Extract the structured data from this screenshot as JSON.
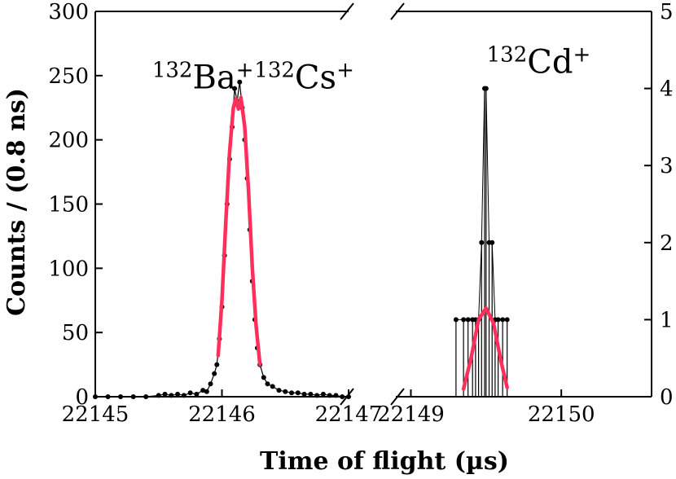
{
  "chart_data": {
    "type": "line",
    "xlabel": "Time of flight (µs)",
    "ylabel": "Counts / (0.8 ns)",
    "colors": {
      "data": "#000000",
      "fit": "#ff2f5b"
    },
    "left_panel": {
      "xlim": [
        22145,
        22147
      ],
      "ylim": [
        0,
        300
      ],
      "x_ticks": [
        22145,
        22146,
        22147
      ],
      "y_ticks": [
        0,
        50,
        100,
        150,
        200,
        250,
        300
      ],
      "annotations": [
        {
          "mass": "132",
          "species": "Ba",
          "charge": "+",
          "x": 22145.85,
          "y": 240
        },
        {
          "mass": "132",
          "species": "Cs",
          "charge": "+",
          "x": 22146.65,
          "y": 240
        }
      ],
      "series": [
        {
          "x": [
            22145.0,
            22145.1,
            22145.2,
            22145.3,
            22145.4,
            22145.5,
            22145.55,
            22145.6,
            22145.65,
            22145.7,
            22145.75,
            22145.8,
            22145.85,
            22145.88,
            22145.91,
            22145.94,
            22145.96,
            22145.98,
            22146.0,
            22146.02,
            22146.04,
            22146.06,
            22146.08,
            22146.1,
            22146.12,
            22146.14,
            22146.16,
            22146.18,
            22146.2,
            22146.22,
            22146.24,
            22146.26,
            22146.28,
            22146.3,
            22146.33,
            22146.36,
            22146.4,
            22146.45,
            22146.5,
            22146.55,
            22146.6,
            22146.65,
            22146.7,
            22146.75,
            22146.8,
            22146.85,
            22146.9,
            22146.95,
            22147.0
          ],
          "y": [
            0,
            0,
            0,
            0,
            0,
            1,
            2,
            1,
            2,
            1,
            3,
            2,
            5,
            4,
            10,
            18,
            25,
            45,
            70,
            110,
            150,
            185,
            210,
            240,
            230,
            245,
            225,
            200,
            170,
            130,
            90,
            60,
            38,
            25,
            15,
            10,
            8,
            5,
            4,
            3,
            3,
            2,
            2,
            1,
            2,
            1,
            1,
            0,
            0
          ]
        }
      ],
      "fit": {
        "x": [
          22145.97,
          22146.0,
          22146.03,
          22146.06,
          22146.09,
          22146.11,
          22146.13,
          22146.15,
          22146.18,
          22146.21,
          22146.24,
          22146.27,
          22146.3
        ],
        "y": [
          32,
          75,
          135,
          190,
          225,
          232,
          224,
          233,
          210,
          160,
          100,
          55,
          25
        ]
      }
    },
    "right_panel": {
      "xlim": [
        22148.9,
        22150.6
      ],
      "ylim": [
        0,
        5
      ],
      "x_ticks": [
        22149,
        22150
      ],
      "y_ticks": [
        0,
        1,
        2,
        3,
        4,
        5
      ],
      "annotations": [
        {
          "mass": "132",
          "species": "Cd",
          "charge": "+",
          "x": 22149.85,
          "y": 4.2
        }
      ],
      "series": [
        {
          "x": [
            22149.3,
            22149.35,
            22149.38,
            22149.41,
            22149.43,
            22149.45,
            22149.47,
            22149.49,
            22149.5,
            22149.52,
            22149.54,
            22149.56,
            22149.58,
            22149.61,
            22149.64
          ],
          "y": [
            1,
            1,
            1,
            1,
            1,
            1,
            2,
            4,
            4,
            2,
            2,
            1,
            1,
            1,
            1
          ]
        }
      ],
      "fit": {
        "x": [
          22149.35,
          22149.4,
          22149.45,
          22149.5,
          22149.55,
          22149.6,
          22149.64
        ],
        "y": [
          0.1,
          0.5,
          1.0,
          1.15,
          0.95,
          0.45,
          0.12
        ]
      }
    }
  }
}
